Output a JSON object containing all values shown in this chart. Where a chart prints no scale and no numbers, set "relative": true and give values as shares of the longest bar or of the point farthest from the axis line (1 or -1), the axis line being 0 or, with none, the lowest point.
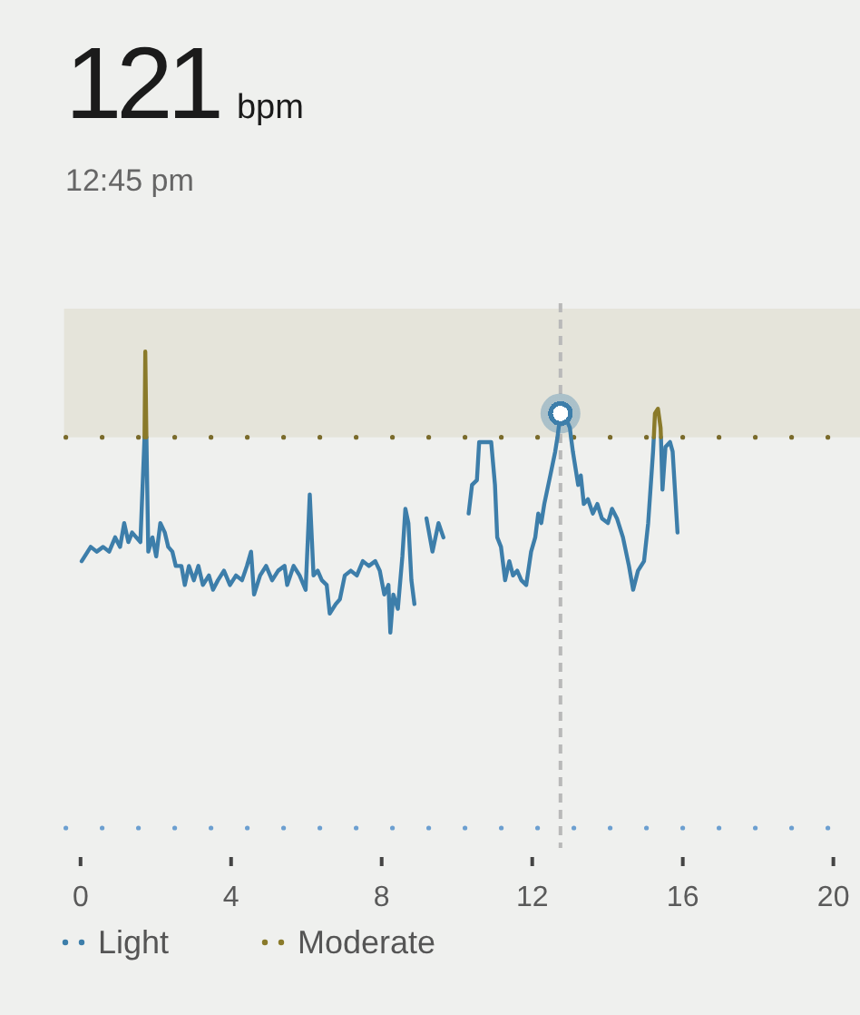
{
  "chart_data": {
    "type": "line",
    "title": "121 bpm",
    "subtitle": "12:45 pm",
    "relative": true,
    "xlim": [
      -0.39,
      20.24
    ],
    "xticks": [
      0,
      4,
      8,
      12,
      16,
      20
    ],
    "legend": "bottom",
    "series": [
      {
        "name": "Light",
        "color": "#3d7eaa",
        "x": [
          0.03,
          0.19,
          0.27,
          0.43,
          0.6,
          0.76,
          0.92,
          1.05,
          1.16,
          1.27,
          1.37,
          1.48,
          1.59,
          1.7,
          1.72,
          1.75,
          1.8,
          1.91,
          2.01,
          2.12,
          2.24,
          2.33,
          2.44,
          2.53,
          2.68,
          2.77,
          2.88,
          3.01,
          3.13,
          3.25,
          3.41,
          3.52,
          3.65,
          3.81,
          3.97,
          4.13,
          4.29,
          4.42,
          4.53,
          4.61,
          4.77,
          4.93,
          5.09,
          5.25,
          5.42,
          5.49,
          5.66,
          5.82,
          5.98,
          6.09,
          6.19,
          6.3,
          6.41,
          6.54,
          6.62,
          6.78,
          6.89,
          7.02,
          7.18,
          7.34,
          7.5,
          7.66,
          7.83,
          7.95,
          8.07,
          8.18,
          8.23,
          8.31,
          8.43,
          8.55,
          8.63,
          8.71,
          8.79,
          8.87,
          9.0,
          9.19,
          9.35,
          9.51,
          9.64,
          10.0,
          10.31,
          10.4,
          10.53,
          10.59,
          10.8,
          10.91,
          11.01,
          11.07,
          11.17,
          11.28,
          11.39,
          11.49,
          11.6,
          11.71,
          11.84,
          11.97,
          12.08,
          12.16,
          12.24,
          12.32,
          12.48,
          12.61,
          12.67,
          12.75,
          12.89,
          13.0,
          13.03,
          13.08,
          13.16,
          13.22,
          13.29,
          13.37,
          13.48,
          13.61,
          13.73,
          13.85,
          14.01,
          14.12,
          14.25,
          14.41,
          14.57,
          14.68,
          14.81,
          14.97,
          15.08,
          15.21,
          15.23,
          15.3,
          15.42,
          15.46,
          15.54,
          15.66,
          15.73,
          15.86
        ],
        "values": [
          0.56,
          0.58,
          0.59,
          0.58,
          0.59,
          0.58,
          0.61,
          0.59,
          0.64,
          0.6,
          0.62,
          0.61,
          0.6,
          0.82,
          null,
          0.82,
          0.58,
          0.61,
          0.57,
          0.64,
          0.62,
          0.59,
          0.58,
          0.55,
          0.55,
          0.51,
          0.55,
          0.52,
          0.55,
          0.51,
          0.53,
          0.5,
          0.52,
          0.54,
          0.51,
          0.53,
          0.52,
          0.55,
          0.58,
          0.49,
          0.53,
          0.55,
          0.52,
          0.54,
          0.55,
          0.51,
          0.55,
          0.53,
          0.5,
          0.7,
          0.53,
          0.54,
          0.52,
          0.51,
          0.45,
          0.47,
          0.48,
          0.53,
          0.54,
          0.53,
          0.56,
          0.55,
          0.56,
          0.54,
          0.49,
          0.51,
          0.41,
          0.49,
          0.46,
          0.57,
          0.67,
          0.64,
          0.52,
          0.47,
          null,
          0.65,
          0.58,
          0.64,
          0.61,
          null,
          0.66,
          0.72,
          0.73,
          0.81,
          0.81,
          0.81,
          0.72,
          0.61,
          0.59,
          0.52,
          0.56,
          0.53,
          0.54,
          0.52,
          0.51,
          0.58,
          0.61,
          0.66,
          0.64,
          0.68,
          0.74,
          0.79,
          0.82,
          0.87,
          0.86,
          0.84,
          0.82,
          0.79,
          0.75,
          0.72,
          0.74,
          0.68,
          0.69,
          0.66,
          0.68,
          0.65,
          0.64,
          0.67,
          0.65,
          0.61,
          0.55,
          0.5,
          0.54,
          0.56,
          0.64,
          0.79,
          0.82,
          null,
          0.82,
          0.71,
          0.8,
          0.81,
          0.79,
          0.62
        ]
      },
      {
        "name": "Moderate",
        "color": "#8a7a2a",
        "x": [
          1.7,
          1.72,
          1.75,
          8,
          15.23,
          15.26,
          15.34,
          15.41,
          15.42
        ],
        "values": [
          0.82,
          1,
          0.82,
          null,
          0.82,
          0.87,
          0.88,
          0.84,
          0.82
        ]
      },
      {
        "type": "scatter",
        "color": "#3d7eaa",
        "marker": "circle",
        "x": [
          12.75
        ],
        "values": [
          0.87
        ]
      }
    ],
    "ref_lines": [
      {
        "axis": "y",
        "value": 0.82,
        "color": "#7a6b2b",
        "line_style": "dotted"
      },
      {
        "axis": "y",
        "value": 0,
        "color": "#6c9fd0",
        "line_style": "dotted"
      },
      {
        "axis": "x",
        "value": 12.75,
        "color": "#b9b9b9",
        "line_style": "dashed"
      }
    ],
    "bands": [
      {
        "axis": "y",
        "from": 0.82,
        "to": 1.09,
        "color": "#e5e4da"
      }
    ]
  }
}
